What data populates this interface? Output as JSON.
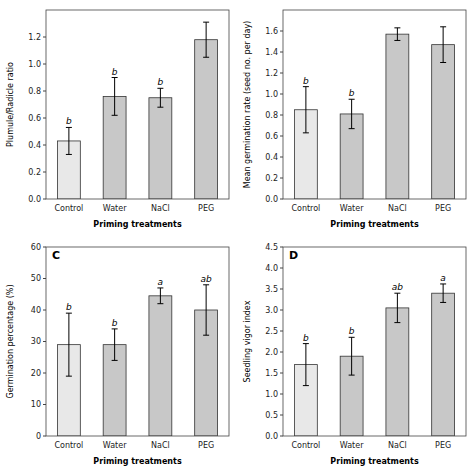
{
  "chart_data": [
    {
      "type": "bar",
      "ylabel": "Plumule/Radicle ratio",
      "xlabel": "Priming treatments",
      "categories": [
        "Control",
        "Water",
        "NaCl",
        "PEG"
      ],
      "values": [
        0.43,
        0.76,
        0.75,
        1.18
      ],
      "errors": [
        0.1,
        0.14,
        0.07,
        0.13
      ],
      "annotations": [
        "b",
        "b",
        "b",
        null
      ],
      "colors": [
        "#e8e8e8",
        "#c8c8c8",
        "#c8c8c8",
        "#c8c8c8"
      ],
      "ylim": [
        0.0,
        1.4
      ],
      "yticks": [
        {
          "value": 0.0,
          "label": "0.0"
        },
        0.2,
        0.4,
        0.6,
        0.8,
        {
          "value": 1.0,
          "label": "1.0"
        },
        1.2
      ]
    },
    {
      "type": "bar",
      "ylabel": "Mean germination rate (seed no. per day)",
      "xlabel": "Priming treatments",
      "categories": [
        "Control",
        "Water",
        "NaCl",
        "PEG"
      ],
      "values": [
        0.85,
        0.81,
        1.57,
        1.47
      ],
      "errors": [
        0.22,
        0.14,
        0.06,
        0.17
      ],
      "annotations": [
        "b",
        "b",
        null,
        null
      ],
      "colors": [
        "#e8e8e8",
        "#c8c8c8",
        "#c8c8c8",
        "#c8c8c8"
      ],
      "ylim": [
        0.0,
        1.8
      ],
      "yticks": [
        {
          "value": 0.0,
          "label": "0.0"
        },
        0.2,
        0.4,
        0.6,
        0.8,
        {
          "value": 1.0,
          "label": "1.0"
        },
        1.2,
        1.4,
        1.6
      ]
    },
    {
      "type": "bar",
      "title": "C",
      "ylabel": "Germination percentage (%)",
      "xlabel": "Priming treatments",
      "categories": [
        "Control",
        "Water",
        "NaCl",
        "PEG"
      ],
      "values": [
        29.0,
        29.0,
        44.5,
        40.0
      ],
      "errors": [
        10.0,
        5.0,
        2.5,
        8.0
      ],
      "annotations": [
        "b",
        "b",
        "a",
        "ab"
      ],
      "colors": [
        "#e8e8e8",
        "#c8c8c8",
        "#c8c8c8",
        "#c8c8c8"
      ],
      "ylim": [
        0,
        60
      ],
      "yticks": [
        0,
        10,
        20,
        30,
        40,
        50,
        60
      ]
    },
    {
      "type": "bar",
      "title": "D",
      "ylabel": "Seedling vigor index",
      "xlabel": "Priming treatments",
      "categories": [
        "Control",
        "Water",
        "NaCl",
        "PEG"
      ],
      "values": [
        1.7,
        1.9,
        3.05,
        3.4
      ],
      "errors": [
        0.5,
        0.45,
        0.35,
        0.22
      ],
      "annotations": [
        "b",
        "b",
        "ab",
        "a"
      ],
      "colors": [
        "#e8e8e8",
        "#c8c8c8",
        "#c8c8c8",
        "#c8c8c8"
      ],
      "ylim": [
        0,
        4.5
      ],
      "yticks": [
        {
          "value": 0.0,
          "label": "0.0"
        },
        0.5,
        {
          "value": 1.0,
          "label": "1.0"
        },
        1.5,
        {
          "value": 2.0,
          "label": "2.0"
        },
        2.5,
        {
          "value": 3.0,
          "label": "3.0"
        },
        3.5,
        {
          "value": 4.0,
          "label": "4.0"
        },
        4.5
      ]
    }
  ]
}
